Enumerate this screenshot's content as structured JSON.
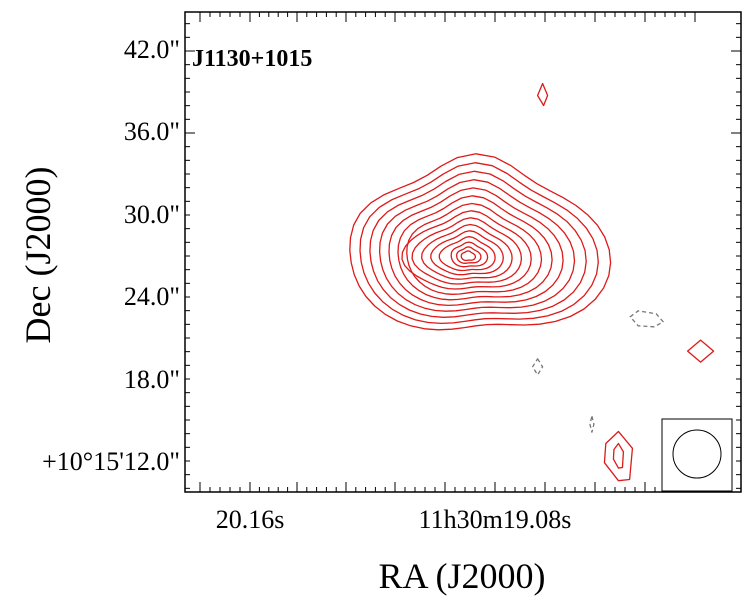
{
  "chart_data": {
    "type": "contour",
    "title": "J1130+1015",
    "xlabel": "RA (J2000)",
    "ylabel": "Dec (J2000)",
    "x_tick_labels": [
      "20.16s",
      "11h30m19.08s"
    ],
    "y_tick_labels": [
      "42.0\"",
      "36.0\"",
      "30.0\"",
      "24.0\"",
      "18.0\"",
      "+10°15'12.0\""
    ],
    "xlim_rel_arcsec": [
      -22,
      22
    ],
    "ylim_rel_arcsec": [
      -20,
      26
    ],
    "positive_contour_color": "#dd1a1a",
    "negative_contour_color": "#777777",
    "main_source": {
      "peak": [
        1,
        2
      ],
      "levels": 15,
      "outer_radius_scale": 1.0
    },
    "minor_features": [
      {
        "kind": "positive",
        "center": [
          6.3,
          18
        ]
      },
      {
        "kind": "positive",
        "center": [
          18.8,
          -6.5
        ]
      },
      {
        "kind": "positive",
        "center": [
          12.3,
          -16.5
        ]
      },
      {
        "kind": "negative",
        "center": [
          14.5,
          -3.5
        ]
      },
      {
        "kind": "negative",
        "center": [
          5.9,
          -8
        ]
      },
      {
        "kind": "negative",
        "center": [
          10.2,
          -13.5
        ]
      }
    ],
    "beam_inset": {
      "shape": "circle"
    },
    "grid": false
  }
}
